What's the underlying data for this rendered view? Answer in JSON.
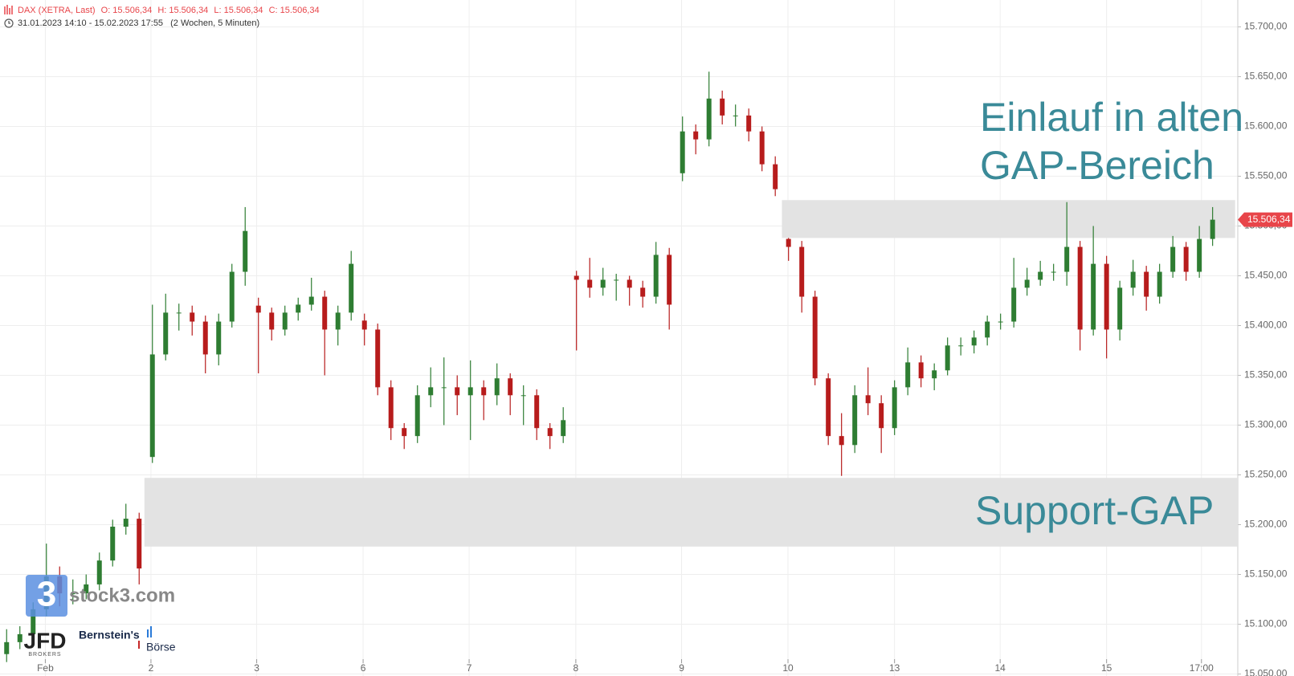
{
  "header": {
    "symbol": "DAX (XETRA, Last)",
    "ohlc": [
      "O: 15.506,34",
      "H: 15.506,34",
      "L: 15.506,34",
      "C: 15.506,34"
    ],
    "range": "31.01.2023 14:10 - 15.02.2023 17:55",
    "interval": "(2 Wochen, 5 Minuten)"
  },
  "logos": {
    "stock3_icon": "3",
    "stock3": "stock3.com",
    "jfd": "JFD",
    "jfd_sub": "BROKERS",
    "bernstein": "Bernstein's",
    "boerse": "Börse"
  },
  "chart_data": {
    "type": "candlestick",
    "up_color": "#2e7d32",
    "down_color": "#b71c1c",
    "zone_color": "#e3e3e3",
    "annotation_color": "#3a8a98",
    "grid": true,
    "xlim": [
      0,
      93.4
    ],
    "ylim": [
      15048,
      15727
    ],
    "xticks": [
      {
        "value": 3.42,
        "label": "Feb"
      },
      {
        "value": 11.39,
        "label": "2"
      },
      {
        "value": 19.37,
        "label": "3"
      },
      {
        "value": 27.4,
        "label": "6"
      },
      {
        "value": 35.4,
        "label": "7"
      },
      {
        "value": 43.45,
        "label": "8"
      },
      {
        "value": 51.43,
        "label": "9"
      },
      {
        "value": 59.46,
        "label": "10"
      },
      {
        "value": 67.5,
        "label": "13"
      },
      {
        "value": 75.47,
        "label": "14"
      },
      {
        "value": 83.5,
        "label": "15"
      },
      {
        "value": 90.66,
        "label": "17:00"
      }
    ],
    "yticks": [
      {
        "value": 15050,
        "label": "15.050,00"
      },
      {
        "value": 15100,
        "label": "15.100,00"
      },
      {
        "value": 15150,
        "label": "15.150,00"
      },
      {
        "value": 15200,
        "label": "15.200,00"
      },
      {
        "value": 15250,
        "label": "15.250,00"
      },
      {
        "value": 15300,
        "label": "15.300,00"
      },
      {
        "value": 15350,
        "label": "15.350,00"
      },
      {
        "value": 15400,
        "label": "15.400,00"
      },
      {
        "value": 15450,
        "label": "15.450,00"
      },
      {
        "value": 15500,
        "label": "15.500,00"
      },
      {
        "value": 15550,
        "label": "15.550,00"
      },
      {
        "value": 15600,
        "label": "15.600,00"
      },
      {
        "value": 15650,
        "label": "15.650,00"
      },
      {
        "value": 15700,
        "label": "15.700,00"
      }
    ],
    "last_price": {
      "value": 15506.34,
      "label": "15.506,34"
    },
    "zones": [
      {
        "x": [
          10.9,
          93.4
        ],
        "y": [
          15178,
          15247
        ],
        "label": [
          "Support-GAP"
        ]
      },
      {
        "x": [
          59.0,
          93.2
        ],
        "y": [
          15488,
          15526
        ],
        "label": [
          "Einlauf in alten",
          "GAP-Bereich"
        ]
      }
    ],
    "candles": [
      [
        15070,
        15095,
        15062,
        15082
      ],
      [
        15082,
        15098,
        15075,
        15090
      ],
      [
        15090,
        15122,
        15083,
        15115
      ],
      [
        15115,
        15181,
        15108,
        15148
      ],
      [
        15148,
        15158,
        15118,
        15131
      ],
      [
        15131,
        15145,
        15120,
        15131
      ],
      [
        15131,
        15150,
        15125,
        15140
      ],
      [
        15140,
        15172,
        15134,
        15164
      ],
      [
        15164,
        15205,
        15158,
        15198
      ],
      [
        15198,
        15221,
        15190,
        15206
      ],
      [
        15206,
        15212,
        15140,
        15156
      ],
      [
        15268,
        15421,
        15262,
        15371
      ],
      [
        15371,
        15432,
        15365,
        15413
      ],
      [
        15413,
        15422,
        15395,
        15413
      ],
      [
        15413,
        15420,
        15390,
        15404
      ],
      [
        15404,
        15410,
        15352,
        15371
      ],
      [
        15371,
        15412,
        15360,
        15404
      ],
      [
        15404,
        15462,
        15398,
        15454
      ],
      [
        15454,
        15519,
        15440,
        15495
      ],
      [
        15420,
        15428,
        15352,
        15413
      ],
      [
        15413,
        15418,
        15385,
        15396
      ],
      [
        15396,
        15420,
        15390,
        15413
      ],
      [
        15413,
        15428,
        15405,
        15421
      ],
      [
        15421,
        15448,
        15415,
        15429
      ],
      [
        15429,
        15435,
        15350,
        15396
      ],
      [
        15396,
        15420,
        15380,
        15413
      ],
      [
        15413,
        15475,
        15405,
        15462
      ],
      [
        15405,
        15412,
        15380,
        15396
      ],
      [
        15396,
        15402,
        15330,
        15338
      ],
      [
        15338,
        15345,
        15285,
        15297
      ],
      [
        15297,
        15302,
        15276,
        15289
      ],
      [
        15289,
        15340,
        15282,
        15330
      ],
      [
        15330,
        15358,
        15318,
        15338
      ],
      [
        15338,
        15368,
        15300,
        15338
      ],
      [
        15338,
        15350,
        15310,
        15330
      ],
      [
        15330,
        15365,
        15285,
        15338
      ],
      [
        15338,
        15345,
        15305,
        15330
      ],
      [
        15330,
        15362,
        15320,
        15347
      ],
      [
        15347,
        15352,
        15310,
        15330
      ],
      [
        15330,
        15340,
        15300,
        15330
      ],
      [
        15330,
        15336,
        15285,
        15297
      ],
      [
        15297,
        15302,
        15276,
        15289
      ],
      [
        15289,
        15318,
        15282,
        15305
      ],
      [
        15450,
        15455,
        15375,
        15446
      ],
      [
        15446,
        15468,
        15428,
        15438
      ],
      [
        15438,
        15458,
        15430,
        15446
      ],
      [
        15446,
        15452,
        15425,
        15446
      ],
      [
        15446,
        15450,
        15420,
        15438
      ],
      [
        15438,
        15445,
        15418,
        15429
      ],
      [
        15429,
        15484,
        15422,
        15471
      ],
      [
        15471,
        15478,
        15396,
        15421
      ],
      [
        15553,
        15610,
        15545,
        15595
      ],
      [
        15595,
        15602,
        15572,
        15587
      ],
      [
        15587,
        15655,
        15580,
        15628
      ],
      [
        15628,
        15636,
        15602,
        15611
      ],
      [
        15611,
        15622,
        15600,
        15611
      ],
      [
        15611,
        15618,
        15585,
        15595
      ],
      [
        15595,
        15600,
        15555,
        15562
      ],
      [
        15562,
        15570,
        15530,
        15537
      ],
      [
        15487,
        15488,
        15465,
        15479
      ],
      [
        15479,
        15485,
        15413,
        15429
      ],
      [
        15429,
        15435,
        15340,
        15347
      ],
      [
        15347,
        15352,
        15280,
        15289
      ],
      [
        15289,
        15312,
        15249,
        15280
      ],
      [
        15280,
        15340,
        15272,
        15330
      ],
      [
        15330,
        15358,
        15310,
        15322
      ],
      [
        15322,
        15330,
        15272,
        15297
      ],
      [
        15297,
        15345,
        15290,
        15338
      ],
      [
        15338,
        15378,
        15330,
        15363
      ],
      [
        15363,
        15370,
        15338,
        15347
      ],
      [
        15347,
        15362,
        15335,
        15355
      ],
      [
        15355,
        15388,
        15350,
        15380
      ],
      [
        15380,
        15388,
        15370,
        15380
      ],
      [
        15380,
        15395,
        15372,
        15388
      ],
      [
        15388,
        15410,
        15380,
        15404
      ],
      [
        15404,
        15412,
        15396,
        15404
      ],
      [
        15404,
        15468,
        15398,
        15438
      ],
      [
        15438,
        15458,
        15430,
        15446
      ],
      [
        15446,
        15465,
        15440,
        15454
      ],
      [
        15454,
        15462,
        15445,
        15454
      ],
      [
        15454,
        15524,
        15440,
        15479
      ],
      [
        15479,
        15485,
        15375,
        15396
      ],
      [
        15396,
        15500,
        15390,
        15462
      ],
      [
        15462,
        15470,
        15367,
        15396
      ],
      [
        15396,
        15445,
        15385,
        15438
      ],
      [
        15438,
        15466,
        15430,
        15454
      ],
      [
        15454,
        15460,
        15415,
        15429
      ],
      [
        15429,
        15462,
        15422,
        15454
      ],
      [
        15454,
        15490,
        15448,
        15479
      ],
      [
        15479,
        15484,
        15445,
        15454
      ],
      [
        15454,
        15500,
        15448,
        15487
      ],
      [
        15487,
        15519,
        15480,
        15506.34
      ]
    ]
  }
}
